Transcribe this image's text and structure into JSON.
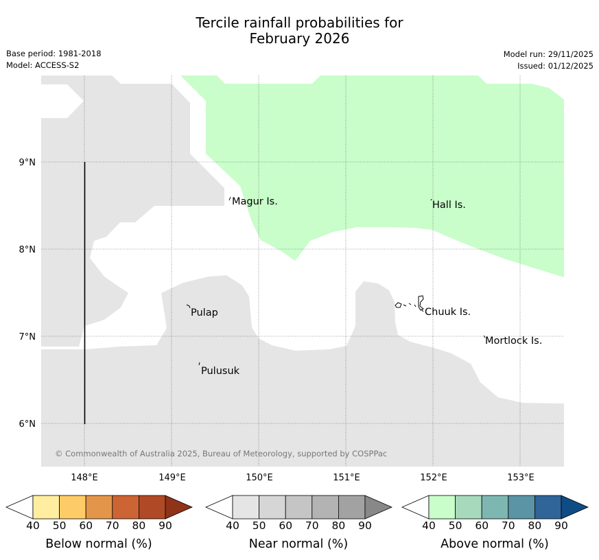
{
  "title": {
    "line1": "Tercile rainfall probabilities for",
    "line2": "February 2026"
  },
  "meta": {
    "base_period": "Base period: 1981-2018",
    "model": "Model: ACCESS-S2",
    "model_run": "Model run: 29/11/2025",
    "issued": "Issued: 01/12/2025"
  },
  "map": {
    "lat_labels": [
      "9°N",
      "8°N",
      "7°N",
      "6°N"
    ],
    "lon_labels": [
      "148°E",
      "149°E",
      "150°E",
      "151°E",
      "152°E",
      "153°E"
    ],
    "place_labels": {
      "magur": "Magur Is.",
      "hall": "Hall Is.",
      "pulap": "Pulap",
      "chuuk": "Chuuk Is.",
      "mortlock": "Mortlock Is.",
      "pulusuk": "Pulusuk"
    },
    "copyright": "© Commonwealth of Australia 2025, Bureau of Meteorology, supported by COSPPac",
    "colors": {
      "near_normal_region": "#e5e5e5",
      "above_normal_region": "#c9fdca",
      "no_signal": "#ffffff"
    }
  },
  "legend": {
    "ticks": [
      "40",
      "50",
      "60",
      "70",
      "80",
      "90"
    ],
    "below": {
      "label": "Below normal (%)",
      "colors": [
        "#ffffff",
        "#ffeda0",
        "#fecc66",
        "#e3964a",
        "#cd6434",
        "#b04a26",
        "#8f3319"
      ]
    },
    "near": {
      "label": "Near normal (%)",
      "colors": [
        "#ffffff",
        "#e5e5e5",
        "#d6d6d6",
        "#c5c5c5",
        "#b3b3b3",
        "#a2a2a2",
        "#888888"
      ]
    },
    "above": {
      "label": "Above normal (%)",
      "colors": [
        "#ffffff",
        "#c9fdca",
        "#a7d9bc",
        "#7eb7b2",
        "#5b94a4",
        "#2f6598",
        "#0f4c85"
      ]
    }
  }
}
